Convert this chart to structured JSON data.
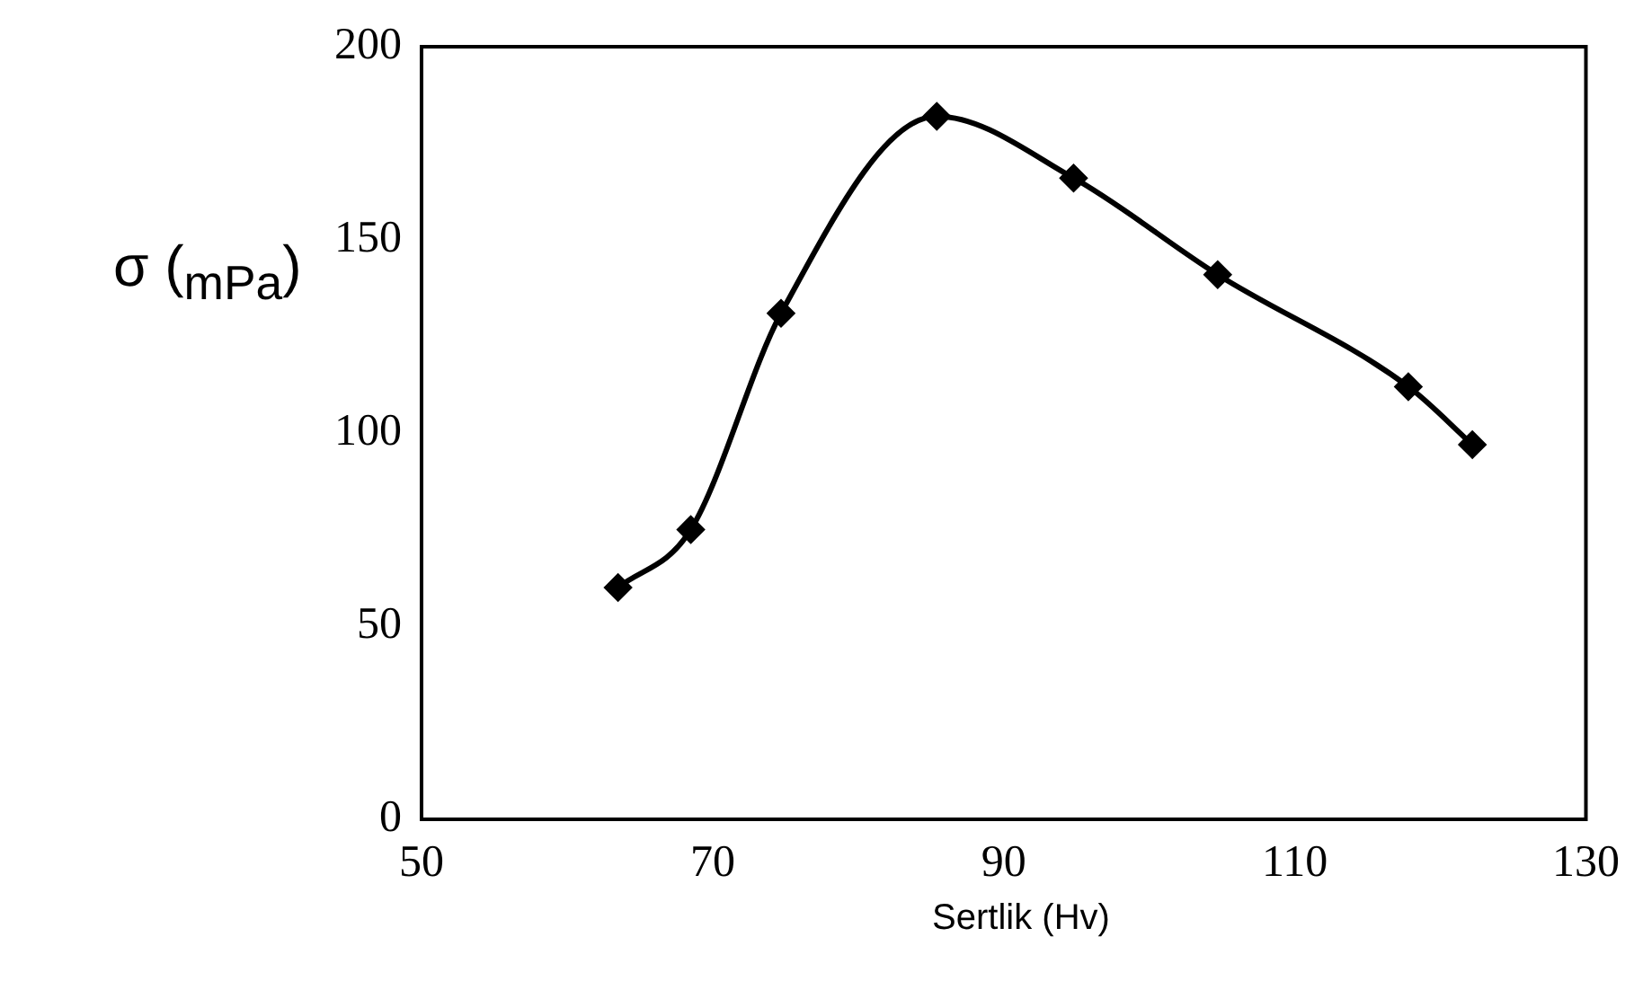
{
  "chart_data": {
    "type": "line",
    "xlabel": "Sertlik (Hv)",
    "ylabel": "σ ($_{mPa}$)",
    "x": [
      63.5,
      68.5,
      74.7,
      85.4,
      94.8,
      104.7,
      117.8,
      122.2
    ],
    "series": [
      {
        "color": "#000000",
        "values": [
          60,
          75,
          131,
          182,
          166,
          141,
          112,
          97
        ]
      }
    ],
    "xlim": [
      50,
      130
    ],
    "xticks": [
      50,
      70,
      90,
      110,
      130
    ],
    "ylim": [
      0,
      200
    ],
    "yticks": [
      0,
      50,
      100,
      150,
      200
    ],
    "grid": false,
    "legend": false,
    "marker": "diamond",
    "line_style": "solid"
  }
}
